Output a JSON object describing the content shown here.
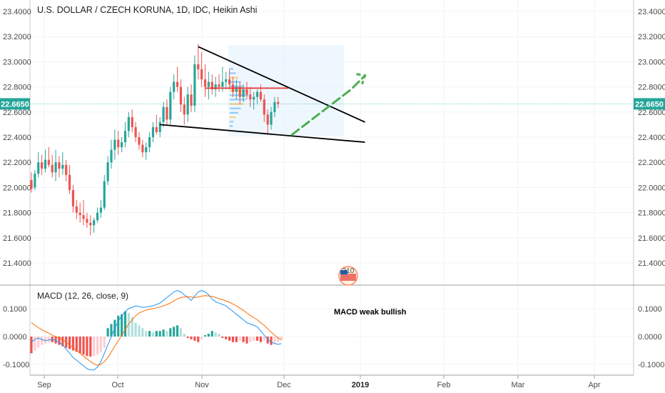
{
  "chart_data": [
    {
      "type": "candlestick",
      "title": "U.S. DOLLAR / CZECH KORUNA, 1D, IDC, Heikin Ashi",
      "y_ticks": [
        "23.4000",
        "23.2000",
        "23.0000",
        "22.8000",
        "22.6000",
        "22.4000",
        "22.2000",
        "22.0000",
        "21.8000",
        "21.6000",
        "21.4000"
      ],
      "ylim": [
        21.3,
        23.45
      ],
      "last_price": "22.6650",
      "x_ticks": [
        "Sep",
        "Oct",
        "Nov",
        "Dec",
        "2019",
        "Feb",
        "Mar",
        "Apr"
      ],
      "colors": {
        "up": "#26a69a",
        "down": "#ef5350",
        "last": "#26a69a"
      },
      "candles": [
        {
          "o": 22.06,
          "h": 22.12,
          "l": 21.96,
          "c": 21.99
        },
        {
          "o": 22.0,
          "h": 22.14,
          "l": 21.98,
          "c": 22.11
        },
        {
          "o": 22.11,
          "h": 22.28,
          "l": 22.08,
          "c": 22.2
        },
        {
          "o": 22.2,
          "h": 22.26,
          "l": 22.1,
          "c": 22.15
        },
        {
          "o": 22.15,
          "h": 22.3,
          "l": 22.12,
          "c": 22.22
        },
        {
          "o": 22.22,
          "h": 22.32,
          "l": 22.16,
          "c": 22.18
        },
        {
          "o": 22.18,
          "h": 22.26,
          "l": 22.08,
          "c": 22.12
        },
        {
          "o": 22.12,
          "h": 22.3,
          "l": 22.05,
          "c": 22.2
        },
        {
          "o": 22.2,
          "h": 22.25,
          "l": 22.08,
          "c": 22.15
        },
        {
          "o": 22.15,
          "h": 22.28,
          "l": 22.1,
          "c": 22.18
        },
        {
          "o": 22.18,
          "h": 22.22,
          "l": 22.05,
          "c": 22.1
        },
        {
          "o": 22.1,
          "h": 22.18,
          "l": 21.95,
          "c": 21.98
        },
        {
          "o": 21.98,
          "h": 22.02,
          "l": 21.8,
          "c": 21.85
        },
        {
          "o": 21.85,
          "h": 21.9,
          "l": 21.75,
          "c": 21.8
        },
        {
          "o": 21.8,
          "h": 21.88,
          "l": 21.72,
          "c": 21.78
        },
        {
          "o": 21.78,
          "h": 21.9,
          "l": 21.7,
          "c": 21.75
        },
        {
          "o": 21.75,
          "h": 21.8,
          "l": 21.68,
          "c": 21.72
        },
        {
          "o": 21.72,
          "h": 21.78,
          "l": 21.62,
          "c": 21.7
        },
        {
          "o": 21.7,
          "h": 21.76,
          "l": 21.64,
          "c": 21.74
        },
        {
          "o": 21.74,
          "h": 21.84,
          "l": 21.72,
          "c": 21.8
        },
        {
          "o": 21.8,
          "h": 21.9,
          "l": 21.76,
          "c": 21.84
        },
        {
          "o": 21.84,
          "h": 22.1,
          "l": 21.82,
          "c": 22.05
        },
        {
          "o": 22.05,
          "h": 22.25,
          "l": 22.02,
          "c": 22.2
        },
        {
          "o": 22.2,
          "h": 22.38,
          "l": 22.15,
          "c": 22.3
        },
        {
          "o": 22.3,
          "h": 22.46,
          "l": 22.22,
          "c": 22.38
        },
        {
          "o": 22.38,
          "h": 22.45,
          "l": 22.26,
          "c": 22.32
        },
        {
          "o": 22.32,
          "h": 22.4,
          "l": 22.28,
          "c": 22.36
        },
        {
          "o": 22.36,
          "h": 22.52,
          "l": 22.32,
          "c": 22.45
        },
        {
          "o": 22.45,
          "h": 22.6,
          "l": 22.4,
          "c": 22.56
        },
        {
          "o": 22.56,
          "h": 22.62,
          "l": 22.44,
          "c": 22.48
        },
        {
          "o": 22.48,
          "h": 22.52,
          "l": 22.36,
          "c": 22.4
        },
        {
          "o": 22.4,
          "h": 22.44,
          "l": 22.3,
          "c": 22.34
        },
        {
          "o": 22.34,
          "h": 22.38,
          "l": 22.24,
          "c": 22.28
        },
        {
          "o": 22.28,
          "h": 22.36,
          "l": 22.22,
          "c": 22.32
        },
        {
          "o": 22.32,
          "h": 22.44,
          "l": 22.28,
          "c": 22.4
        },
        {
          "o": 22.4,
          "h": 22.52,
          "l": 22.36,
          "c": 22.48
        },
        {
          "o": 22.48,
          "h": 22.58,
          "l": 22.42,
          "c": 22.44
        },
        {
          "o": 22.44,
          "h": 22.56,
          "l": 22.4,
          "c": 22.52
        },
        {
          "o": 22.52,
          "h": 22.68,
          "l": 22.48,
          "c": 22.64
        },
        {
          "o": 22.64,
          "h": 22.7,
          "l": 22.5,
          "c": 22.54
        },
        {
          "o": 22.54,
          "h": 22.8,
          "l": 22.5,
          "c": 22.76
        },
        {
          "o": 22.76,
          "h": 22.9,
          "l": 22.7,
          "c": 22.84
        },
        {
          "o": 22.84,
          "h": 22.96,
          "l": 22.76,
          "c": 22.8
        },
        {
          "o": 22.8,
          "h": 22.86,
          "l": 22.6,
          "c": 22.66
        },
        {
          "o": 22.66,
          "h": 22.72,
          "l": 22.5,
          "c": 22.58
        },
        {
          "o": 22.58,
          "h": 22.8,
          "l": 22.52,
          "c": 22.74
        },
        {
          "o": 22.74,
          "h": 22.82,
          "l": 22.6,
          "c": 22.65
        },
        {
          "o": 22.65,
          "h": 23.05,
          "l": 22.6,
          "c": 22.98
        },
        {
          "o": 22.98,
          "h": 23.14,
          "l": 22.86,
          "c": 22.94
        },
        {
          "o": 22.94,
          "h": 23.08,
          "l": 22.8,
          "c": 22.86
        },
        {
          "o": 22.86,
          "h": 22.98,
          "l": 22.72,
          "c": 22.8
        },
        {
          "o": 22.8,
          "h": 22.92,
          "l": 22.7,
          "c": 22.84
        },
        {
          "o": 22.84,
          "h": 22.9,
          "l": 22.74,
          "c": 22.78
        },
        {
          "o": 22.78,
          "h": 22.88,
          "l": 22.72,
          "c": 22.82
        },
        {
          "o": 22.82,
          "h": 22.9,
          "l": 22.76,
          "c": 22.8
        },
        {
          "o": 22.8,
          "h": 22.96,
          "l": 22.76,
          "c": 22.84
        },
        {
          "o": 22.84,
          "h": 22.92,
          "l": 22.78,
          "c": 22.86
        },
        {
          "o": 22.86,
          "h": 22.94,
          "l": 22.78,
          "c": 22.82
        },
        {
          "o": 22.82,
          "h": 22.88,
          "l": 22.72,
          "c": 22.76
        },
        {
          "o": 22.76,
          "h": 22.86,
          "l": 22.7,
          "c": 22.8
        },
        {
          "o": 22.8,
          "h": 22.84,
          "l": 22.66,
          "c": 22.72
        },
        {
          "o": 22.72,
          "h": 22.82,
          "l": 22.68,
          "c": 22.78
        },
        {
          "o": 22.78,
          "h": 22.84,
          "l": 22.7,
          "c": 22.74
        },
        {
          "o": 22.74,
          "h": 22.8,
          "l": 22.64,
          "c": 22.7
        },
        {
          "o": 22.7,
          "h": 22.76,
          "l": 22.62,
          "c": 22.72
        },
        {
          "o": 22.72,
          "h": 22.78,
          "l": 22.66,
          "c": 22.76
        },
        {
          "o": 22.76,
          "h": 22.82,
          "l": 22.68,
          "c": 22.7
        },
        {
          "o": 22.7,
          "h": 22.74,
          "l": 22.52,
          "c": 22.58
        },
        {
          "o": 22.58,
          "h": 22.62,
          "l": 22.42,
          "c": 22.5
        },
        {
          "o": 22.5,
          "h": 22.64,
          "l": 22.46,
          "c": 22.6
        },
        {
          "o": 22.6,
          "h": 22.72,
          "l": 22.56,
          "c": 22.68
        },
        {
          "o": 22.68,
          "h": 22.72,
          "l": 22.63,
          "c": 22.665
        }
      ],
      "drawings": {
        "upper_trendline": [
          {
            "d": 48,
            "y": 23.12
          },
          {
            "d": 96,
            "y": 22.52
          }
        ],
        "lower_trendline": [
          {
            "d": 37,
            "y": 22.5
          },
          {
            "d": 96,
            "y": 22.36
          }
        ],
        "resistance": [
          {
            "d": 50,
            "y": 22.79
          },
          {
            "d": 74,
            "y": 22.79
          }
        ],
        "projection": [
          {
            "d": 75,
            "y": 22.42
          },
          {
            "d": 92,
            "y": 22.78
          },
          {
            "d": 96,
            "y": 22.89
          }
        ]
      }
    },
    {
      "type": "macd",
      "title": "MACD (12, 26, close, 9)",
      "annotation": "MACD weak bullish",
      "y_ticks": [
        "0.1000",
        "0.0000",
        "-0.1000"
      ],
      "ylim": [
        -0.13,
        0.17
      ],
      "colors": {
        "macd": "#2196f3",
        "signal": "#ff6d00",
        "hist_up_strong": "#26a69a",
        "hist_up_weak": "#b2dfdb",
        "hist_down_strong": "#ef5350",
        "hist_down_weak": "#ffcdd2"
      },
      "histogram": [
        -0.06,
        -0.05,
        -0.04,
        -0.03,
        -0.025,
        -0.02,
        -0.02,
        -0.025,
        -0.03,
        -0.035,
        -0.04,
        -0.045,
        -0.05,
        -0.055,
        -0.06,
        -0.065,
        -0.07,
        -0.072,
        -0.07,
        -0.065,
        -0.055,
        -0.04,
        0.03,
        0.045,
        0.06,
        0.075,
        0.08,
        0.09,
        0.085,
        0.07,
        0.05,
        0.04,
        0.03,
        0.02,
        0.02,
        0.015,
        0.02,
        0.02,
        0.025,
        0.02,
        0.03,
        0.035,
        0.04,
        0.03,
        0.01,
        -0.005,
        -0.01,
        -0.015,
        -0.02,
        -0.01,
        0.005,
        0.01,
        0.02,
        0.015,
        0.01,
        -0.005,
        -0.01,
        -0.015,
        -0.02,
        -0.02,
        -0.015,
        -0.02,
        -0.025,
        -0.02,
        -0.015,
        -0.015,
        -0.02,
        -0.015,
        -0.025,
        -0.03,
        -0.025,
        -0.02,
        -0.01
      ],
      "macd": [
        -0.02,
        -0.01,
        -0.005,
        -0.01,
        -0.015,
        -0.012,
        -0.01,
        -0.015,
        -0.02,
        -0.03,
        -0.045,
        -0.06,
        -0.075,
        -0.085,
        -0.095,
        -0.105,
        -0.115,
        -0.12,
        -0.12,
        -0.11,
        -0.09,
        -0.06,
        -0.03,
        0.0,
        0.03,
        0.055,
        0.075,
        0.09,
        0.1,
        0.105,
        0.11,
        0.108,
        0.105,
        0.106,
        0.108,
        0.11,
        0.115,
        0.12,
        0.13,
        0.14,
        0.15,
        0.16,
        0.165,
        0.16,
        0.15,
        0.14,
        0.13,
        0.145,
        0.16,
        0.165,
        0.16,
        0.15,
        0.135,
        0.125,
        0.12,
        0.115,
        0.11,
        0.1,
        0.09,
        0.08,
        0.07,
        0.06,
        0.05,
        0.045,
        0.04,
        0.035,
        0.02,
        0.005,
        -0.01,
        -0.02,
        -0.025,
        -0.028,
        -0.025
      ],
      "signal": [
        0.05,
        0.04,
        0.032,
        0.025,
        0.018,
        0.012,
        0.005,
        0.0,
        -0.005,
        -0.012,
        -0.02,
        -0.03,
        -0.04,
        -0.05,
        -0.06,
        -0.07,
        -0.08,
        -0.09,
        -0.098,
        -0.103,
        -0.1,
        -0.09,
        -0.075,
        -0.055,
        -0.035,
        -0.015,
        0.005,
        0.025,
        0.045,
        0.06,
        0.075,
        0.085,
        0.09,
        0.095,
        0.098,
        0.1,
        0.103,
        0.106,
        0.11,
        0.115,
        0.12,
        0.128,
        0.135,
        0.14,
        0.142,
        0.143,
        0.142,
        0.14,
        0.142,
        0.145,
        0.147,
        0.146,
        0.144,
        0.14,
        0.136,
        0.132,
        0.128,
        0.123,
        0.117,
        0.11,
        0.102,
        0.094,
        0.085,
        0.076,
        0.068,
        0.06,
        0.05,
        0.04,
        0.028,
        0.016,
        0.005,
        -0.005,
        -0.012
      ]
    }
  ],
  "badge": {
    "count": "310",
    "icon": "us-flag-icon"
  }
}
